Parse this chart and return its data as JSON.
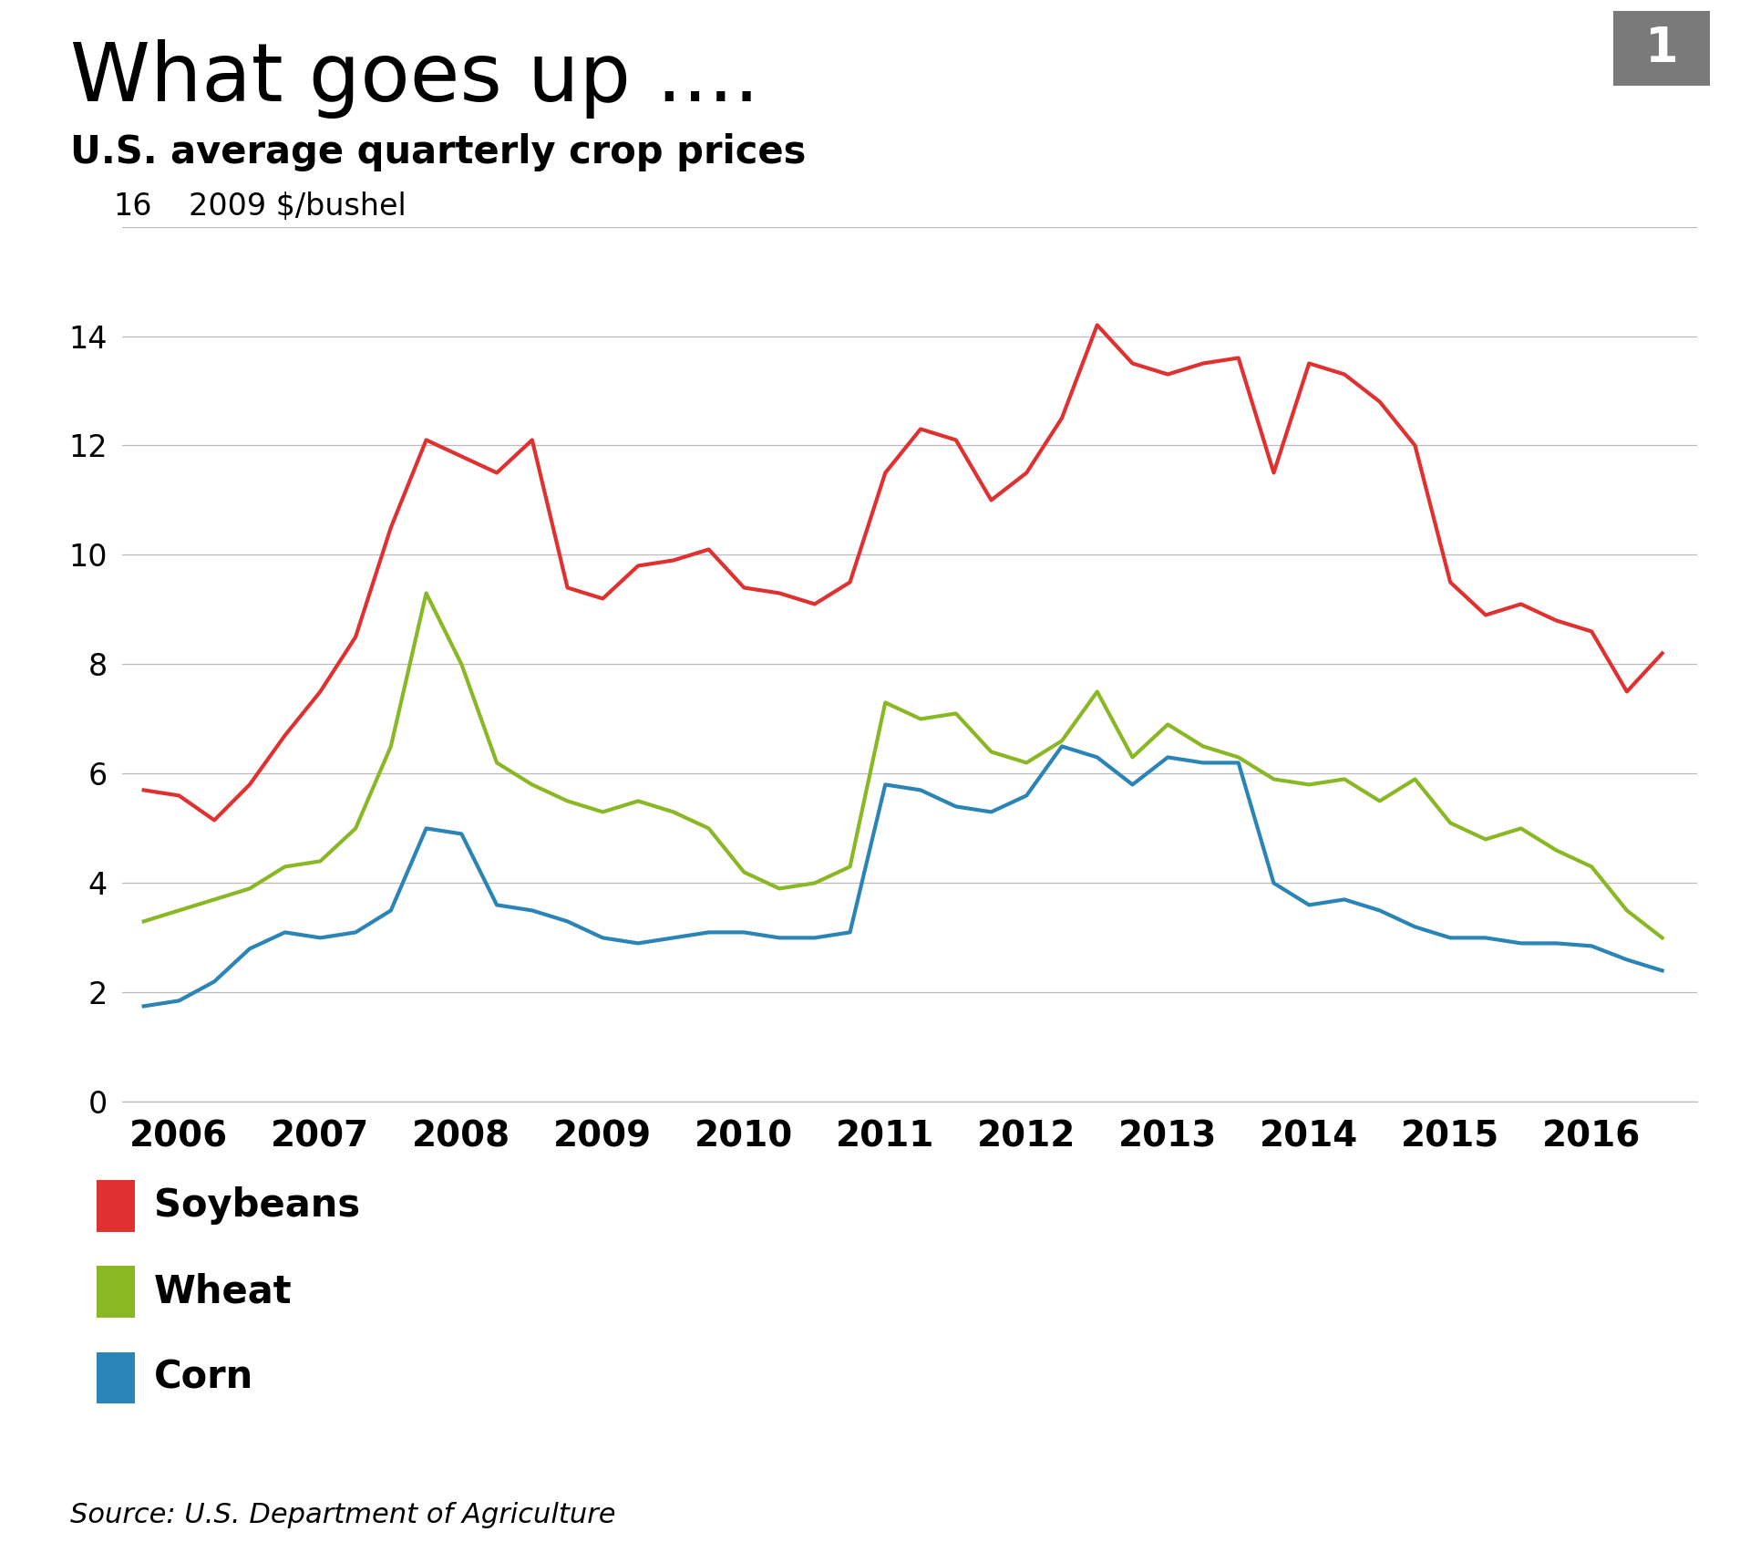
{
  "title": "What goes up ....",
  "subtitle": "U.S. average quarterly crop prices",
  "ylabel": "2009 $/bushel",
  "source": "Source: U.S. Department of Agriculture",
  "badge_number": "1",
  "ylim": [
    0,
    16
  ],
  "yticks": [
    0,
    2,
    4,
    6,
    8,
    10,
    12,
    14,
    16
  ],
  "background_color": "#ffffff",
  "soybeans_color": "#e03030",
  "wheat_color": "#8ab825",
  "corn_color": "#2a84b5",
  "line_width": 3.0,
  "soybeans": {
    "x": [
      2005.75,
      2006.0,
      2006.25,
      2006.5,
      2006.75,
      2007.0,
      2007.25,
      2007.5,
      2007.75,
      2008.0,
      2008.25,
      2008.5,
      2008.75,
      2009.0,
      2009.25,
      2009.5,
      2009.75,
      2010.0,
      2010.25,
      2010.5,
      2010.75,
      2011.0,
      2011.25,
      2011.5,
      2011.75,
      2012.0,
      2012.25,
      2012.5,
      2012.75,
      2013.0,
      2013.25,
      2013.5,
      2013.75,
      2014.0,
      2014.25,
      2014.5,
      2014.75,
      2015.0,
      2015.25,
      2015.5,
      2015.75,
      2016.0,
      2016.25,
      2016.5
    ],
    "y": [
      5.7,
      5.6,
      5.15,
      5.8,
      6.7,
      7.5,
      8.5,
      10.5,
      12.1,
      11.8,
      11.5,
      12.1,
      9.4,
      9.2,
      9.8,
      9.9,
      10.1,
      9.4,
      9.3,
      9.1,
      9.5,
      11.5,
      12.3,
      12.1,
      11.0,
      11.5,
      12.5,
      14.2,
      13.5,
      13.3,
      13.5,
      13.6,
      11.5,
      13.5,
      13.3,
      12.8,
      12.0,
      9.5,
      8.9,
      9.1,
      8.8,
      8.6,
      7.5,
      8.2
    ]
  },
  "wheat": {
    "x": [
      2005.75,
      2006.0,
      2006.25,
      2006.5,
      2006.75,
      2007.0,
      2007.25,
      2007.5,
      2007.75,
      2008.0,
      2008.25,
      2008.5,
      2008.75,
      2009.0,
      2009.25,
      2009.5,
      2009.75,
      2010.0,
      2010.25,
      2010.5,
      2010.75,
      2011.0,
      2011.25,
      2011.5,
      2011.75,
      2012.0,
      2012.25,
      2012.5,
      2012.75,
      2013.0,
      2013.25,
      2013.5,
      2013.75,
      2014.0,
      2014.25,
      2014.5,
      2014.75,
      2015.0,
      2015.25,
      2015.5,
      2015.75,
      2016.0,
      2016.25,
      2016.5
    ],
    "y": [
      3.3,
      3.5,
      3.7,
      3.9,
      4.3,
      4.4,
      5.0,
      6.5,
      9.3,
      8.0,
      6.2,
      5.8,
      5.5,
      5.3,
      5.5,
      5.3,
      5.0,
      4.2,
      3.9,
      4.0,
      4.3,
      7.3,
      7.0,
      7.1,
      6.4,
      6.2,
      6.6,
      7.5,
      6.3,
      6.9,
      6.5,
      6.3,
      5.9,
      5.8,
      5.9,
      5.5,
      5.9,
      5.1,
      4.8,
      5.0,
      4.6,
      4.3,
      3.5,
      3.0
    ]
  },
  "corn": {
    "x": [
      2005.75,
      2006.0,
      2006.25,
      2006.5,
      2006.75,
      2007.0,
      2007.25,
      2007.5,
      2007.75,
      2008.0,
      2008.25,
      2008.5,
      2008.75,
      2009.0,
      2009.25,
      2009.5,
      2009.75,
      2010.0,
      2010.25,
      2010.5,
      2010.75,
      2011.0,
      2011.25,
      2011.5,
      2011.75,
      2012.0,
      2012.25,
      2012.5,
      2012.75,
      2013.0,
      2013.25,
      2013.5,
      2013.75,
      2014.0,
      2014.25,
      2014.5,
      2014.75,
      2015.0,
      2015.25,
      2015.5,
      2015.75,
      2016.0,
      2016.25,
      2016.5
    ],
    "y": [
      1.75,
      1.85,
      2.2,
      2.8,
      3.1,
      3.0,
      3.1,
      3.5,
      5.0,
      4.9,
      3.6,
      3.5,
      3.3,
      3.0,
      2.9,
      3.0,
      3.1,
      3.1,
      3.0,
      3.0,
      3.1,
      5.8,
      5.7,
      5.4,
      5.3,
      5.6,
      6.5,
      6.3,
      5.8,
      6.3,
      6.2,
      6.2,
      4.0,
      3.6,
      3.7,
      3.5,
      3.2,
      3.0,
      3.0,
      2.9,
      2.9,
      2.85,
      2.6,
      2.4
    ]
  }
}
